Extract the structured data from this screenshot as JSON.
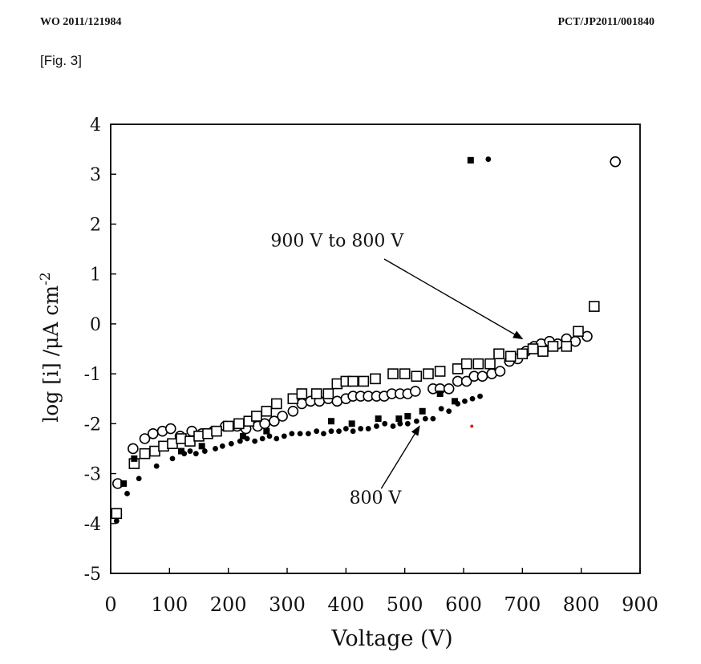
{
  "header": {
    "left": "WO 2011/121984",
    "right": "PCT/JP2011/001840"
  },
  "figure_label": "[Fig. 3]",
  "chart_data": {
    "type": "scatter",
    "xlabel": "Voltage (V)",
    "ylabel": "log [i] /μA cm-2",
    "xlim": [
      0,
      900
    ],
    "ylim": [
      -5,
      4
    ],
    "xticks": [
      "0",
      "100",
      "200",
      "300",
      "400",
      "500",
      "600",
      "700",
      "800",
      "900"
    ],
    "yticks": [
      "4",
      "3",
      "2",
      "1",
      "0",
      "-1",
      "-2",
      "-3",
      "-4",
      "-5"
    ],
    "grid": false,
    "annotations": [
      {
        "text": "900 V to 800 V",
        "label_x": 385,
        "label_y": 1.55,
        "arrow_from": [
          465,
          1.3
        ],
        "arrow_to": [
          700,
          -0.3
        ]
      },
      {
        "text": "800 V",
        "label_x": 450,
        "label_y": -3.6,
        "arrow_from": [
          460,
          -3.3
        ],
        "arrow_to": [
          525,
          -2.05
        ]
      }
    ],
    "series": [
      {
        "marker": "open-circle",
        "points": [
          [
            12,
            -3.2
          ],
          [
            38,
            -2.5
          ],
          [
            58,
            -2.3
          ],
          [
            72,
            -2.2
          ],
          [
            88,
            -2.15
          ],
          [
            102,
            -2.1
          ],
          [
            118,
            -2.25
          ],
          [
            138,
            -2.15
          ],
          [
            155,
            -2.2
          ],
          [
            175,
            -2.15
          ],
          [
            195,
            -2.05
          ],
          [
            215,
            -2.05
          ],
          [
            230,
            -2.1
          ],
          [
            250,
            -2.05
          ],
          [
            262,
            -2.0
          ],
          [
            278,
            -1.95
          ],
          [
            292,
            -1.85
          ],
          [
            310,
            -1.75
          ],
          [
            325,
            -1.6
          ],
          [
            340,
            -1.55
          ],
          [
            355,
            -1.55
          ],
          [
            370,
            -1.5
          ],
          [
            385,
            -1.55
          ],
          [
            400,
            -1.5
          ],
          [
            412,
            -1.45
          ],
          [
            425,
            -1.45
          ],
          [
            438,
            -1.45
          ],
          [
            452,
            -1.45
          ],
          [
            465,
            -1.45
          ],
          [
            478,
            -1.4
          ],
          [
            492,
            -1.4
          ],
          [
            505,
            -1.4
          ],
          [
            518,
            -1.35
          ],
          [
            548,
            -1.3
          ],
          [
            560,
            -1.3
          ],
          [
            575,
            -1.3
          ],
          [
            590,
            -1.15
          ],
          [
            605,
            -1.15
          ],
          [
            618,
            -1.05
          ],
          [
            632,
            -1.05
          ],
          [
            648,
            -1.0
          ],
          [
            662,
            -0.95
          ],
          [
            678,
            -0.75
          ],
          [
            692,
            -0.7
          ],
          [
            706,
            -0.55
          ],
          [
            720,
            -0.45
          ],
          [
            732,
            -0.4
          ],
          [
            746,
            -0.35
          ],
          [
            760,
            -0.4
          ],
          [
            775,
            -0.3
          ],
          [
            790,
            -0.35
          ],
          [
            810,
            -0.25
          ],
          [
            858,
            3.25
          ]
        ]
      },
      {
        "marker": "open-square",
        "points": [
          [
            10,
            -3.8
          ],
          [
            40,
            -2.8
          ],
          [
            58,
            -2.6
          ],
          [
            75,
            -2.55
          ],
          [
            90,
            -2.45
          ],
          [
            105,
            -2.4
          ],
          [
            120,
            -2.3
          ],
          [
            135,
            -2.35
          ],
          [
            150,
            -2.25
          ],
          [
            165,
            -2.2
          ],
          [
            180,
            -2.15
          ],
          [
            200,
            -2.05
          ],
          [
            218,
            -2.0
          ],
          [
            235,
            -1.95
          ],
          [
            248,
            -1.85
          ],
          [
            265,
            -1.75
          ],
          [
            282,
            -1.6
          ],
          [
            310,
            -1.5
          ],
          [
            325,
            -1.4
          ],
          [
            350,
            -1.4
          ],
          [
            370,
            -1.4
          ],
          [
            385,
            -1.2
          ],
          [
            400,
            -1.15
          ],
          [
            412,
            -1.15
          ],
          [
            430,
            -1.15
          ],
          [
            450,
            -1.1
          ],
          [
            480,
            -1.0
          ],
          [
            500,
            -1.0
          ],
          [
            520,
            -1.05
          ],
          [
            540,
            -1.0
          ],
          [
            560,
            -0.95
          ],
          [
            590,
            -0.9
          ],
          [
            605,
            -0.8
          ],
          [
            625,
            -0.8
          ],
          [
            645,
            -0.8
          ],
          [
            660,
            -0.6
          ],
          [
            680,
            -0.65
          ],
          [
            700,
            -0.6
          ],
          [
            718,
            -0.5
          ],
          [
            735,
            -0.55
          ],
          [
            752,
            -0.45
          ],
          [
            775,
            -0.45
          ],
          [
            795,
            -0.15
          ],
          [
            822,
            0.35
          ]
        ]
      },
      {
        "marker": "filled-square",
        "points": [
          [
            22,
            -3.2
          ],
          [
            40,
            -2.7
          ],
          [
            120,
            -2.55
          ],
          [
            155,
            -2.45
          ],
          [
            225,
            -2.25
          ],
          [
            265,
            -2.15
          ],
          [
            375,
            -1.95
          ],
          [
            410,
            -2.0
          ],
          [
            455,
            -1.9
          ],
          [
            490,
            -1.9
          ],
          [
            505,
            -1.85
          ],
          [
            530,
            -1.75
          ],
          [
            560,
            -1.4
          ],
          [
            585,
            -1.55
          ],
          [
            612,
            3.28
          ]
        ]
      },
      {
        "marker": "filled-circle",
        "points": [
          [
            10,
            -3.95
          ],
          [
            28,
            -3.4
          ],
          [
            48,
            -3.1
          ],
          [
            78,
            -2.85
          ],
          [
            105,
            -2.7
          ],
          [
            125,
            -2.6
          ],
          [
            135,
            -2.55
          ],
          [
            145,
            -2.6
          ],
          [
            160,
            -2.55
          ],
          [
            178,
            -2.5
          ],
          [
            190,
            -2.45
          ],
          [
            205,
            -2.4
          ],
          [
            220,
            -2.35
          ],
          [
            232,
            -2.3
          ],
          [
            245,
            -2.35
          ],
          [
            258,
            -2.3
          ],
          [
            270,
            -2.25
          ],
          [
            282,
            -2.3
          ],
          [
            295,
            -2.25
          ],
          [
            308,
            -2.2
          ],
          [
            322,
            -2.2
          ],
          [
            336,
            -2.2
          ],
          [
            350,
            -2.15
          ],
          [
            362,
            -2.2
          ],
          [
            375,
            -2.15
          ],
          [
            388,
            -2.15
          ],
          [
            400,
            -2.1
          ],
          [
            412,
            -2.15
          ],
          [
            425,
            -2.1
          ],
          [
            438,
            -2.1
          ],
          [
            452,
            -2.05
          ],
          [
            466,
            -2.0
          ],
          [
            480,
            -2.05
          ],
          [
            492,
            -2.0
          ],
          [
            505,
            -2.0
          ],
          [
            520,
            -1.95
          ],
          [
            535,
            -1.9
          ],
          [
            548,
            -1.9
          ],
          [
            562,
            -1.7
          ],
          [
            575,
            -1.75
          ],
          [
            590,
            -1.6
          ],
          [
            602,
            -1.55
          ],
          [
            615,
            -1.5
          ],
          [
            628,
            -1.45
          ],
          [
            642,
            3.3
          ]
        ]
      },
      {
        "marker": "red-dot",
        "points": [
          [
            614,
            -2.05
          ]
        ]
      }
    ]
  }
}
